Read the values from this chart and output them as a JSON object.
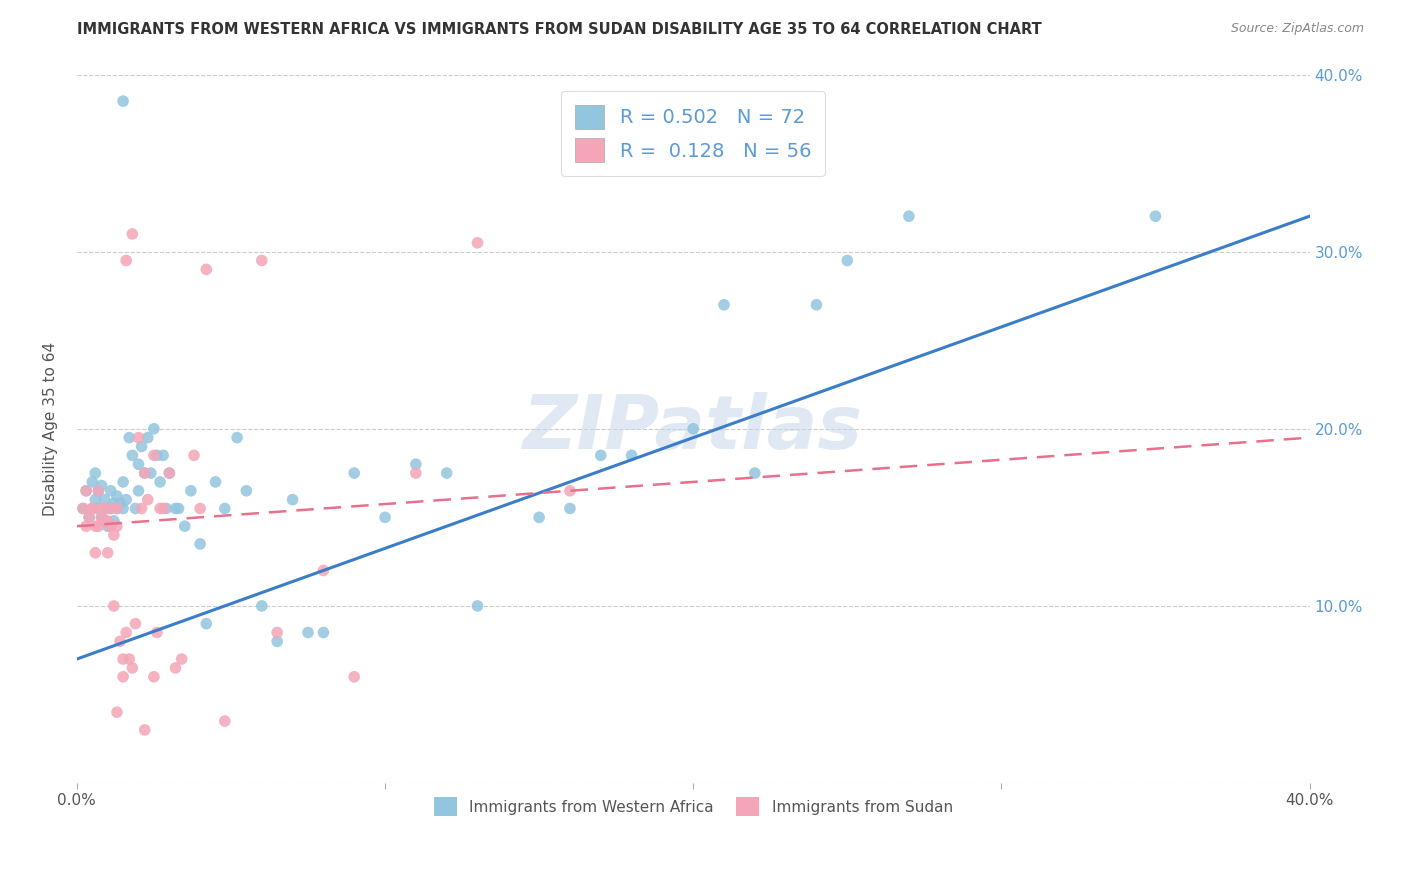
{
  "title": "IMMIGRANTS FROM WESTERN AFRICA VS IMMIGRANTS FROM SUDAN DISABILITY AGE 35 TO 64 CORRELATION CHART",
  "source": "Source: ZipAtlas.com",
  "ylabel": "Disability Age 35 to 64",
  "xmin": 0.0,
  "xmax": 0.4,
  "ymin": 0.0,
  "ymax": 0.4,
  "legend_R1": "0.502",
  "legend_N1": "72",
  "legend_R2": "0.128",
  "legend_N2": "56",
  "color_blue": "#92c5de",
  "color_pink": "#f4a6b8",
  "color_blue_line": "#3a7dc9",
  "color_pink_line": "#e8708a",
  "watermark": "ZIPatlas",
  "blue_line_x0": 0.0,
  "blue_line_y0": 0.07,
  "blue_line_x1": 0.4,
  "blue_line_y1": 0.32,
  "pink_line_x0": 0.0,
  "pink_line_y0": 0.145,
  "pink_line_x1": 0.4,
  "pink_line_y1": 0.195,
  "blue_x": [
    0.002,
    0.003,
    0.004,
    0.005,
    0.005,
    0.006,
    0.006,
    0.007,
    0.007,
    0.008,
    0.008,
    0.009,
    0.009,
    0.01,
    0.01,
    0.011,
    0.011,
    0.012,
    0.012,
    0.013,
    0.013,
    0.014,
    0.015,
    0.015,
    0.016,
    0.017,
    0.018,
    0.019,
    0.02,
    0.02,
    0.021,
    0.022,
    0.023,
    0.024,
    0.025,
    0.026,
    0.027,
    0.028,
    0.029,
    0.03,
    0.032,
    0.033,
    0.035,
    0.037,
    0.04,
    0.042,
    0.045,
    0.048,
    0.052,
    0.055,
    0.06,
    0.065,
    0.07,
    0.075,
    0.08,
    0.09,
    0.1,
    0.11,
    0.12,
    0.13,
    0.15,
    0.16,
    0.17,
    0.18,
    0.2,
    0.21,
    0.22,
    0.24,
    0.25,
    0.27,
    0.35,
    0.015
  ],
  "blue_y": [
    0.155,
    0.165,
    0.15,
    0.155,
    0.17,
    0.16,
    0.175,
    0.155,
    0.165,
    0.15,
    0.168,
    0.148,
    0.16,
    0.155,
    0.145,
    0.155,
    0.165,
    0.148,
    0.158,
    0.155,
    0.162,
    0.158,
    0.155,
    0.17,
    0.16,
    0.195,
    0.185,
    0.155,
    0.165,
    0.18,
    0.19,
    0.175,
    0.195,
    0.175,
    0.2,
    0.185,
    0.17,
    0.185,
    0.155,
    0.175,
    0.155,
    0.155,
    0.145,
    0.165,
    0.135,
    0.09,
    0.17,
    0.155,
    0.195,
    0.165,
    0.1,
    0.08,
    0.16,
    0.085,
    0.085,
    0.175,
    0.15,
    0.18,
    0.175,
    0.1,
    0.15,
    0.155,
    0.185,
    0.185,
    0.2,
    0.27,
    0.175,
    0.27,
    0.295,
    0.32,
    0.32,
    0.385
  ],
  "pink_x": [
    0.002,
    0.003,
    0.003,
    0.004,
    0.005,
    0.005,
    0.006,
    0.006,
    0.007,
    0.007,
    0.008,
    0.008,
    0.009,
    0.009,
    0.01,
    0.01,
    0.011,
    0.011,
    0.012,
    0.012,
    0.013,
    0.013,
    0.014,
    0.015,
    0.016,
    0.017,
    0.018,
    0.019,
    0.02,
    0.021,
    0.022,
    0.023,
    0.025,
    0.026,
    0.027,
    0.028,
    0.03,
    0.032,
    0.034,
    0.038,
    0.04,
    0.042,
    0.048,
    0.06,
    0.065,
    0.08,
    0.09,
    0.11,
    0.13,
    0.16,
    0.025,
    0.013,
    0.015,
    0.016,
    0.018,
    0.022
  ],
  "pink_y": [
    0.155,
    0.145,
    0.165,
    0.15,
    0.155,
    0.155,
    0.13,
    0.145,
    0.145,
    0.165,
    0.155,
    0.15,
    0.148,
    0.155,
    0.13,
    0.148,
    0.145,
    0.155,
    0.1,
    0.14,
    0.145,
    0.155,
    0.08,
    0.06,
    0.085,
    0.07,
    0.065,
    0.09,
    0.195,
    0.155,
    0.175,
    0.16,
    0.185,
    0.085,
    0.155,
    0.155,
    0.175,
    0.065,
    0.07,
    0.185,
    0.155,
    0.29,
    0.035,
    0.295,
    0.085,
    0.12,
    0.06,
    0.175,
    0.305,
    0.165,
    0.06,
    0.04,
    0.07,
    0.295,
    0.31,
    0.03
  ]
}
